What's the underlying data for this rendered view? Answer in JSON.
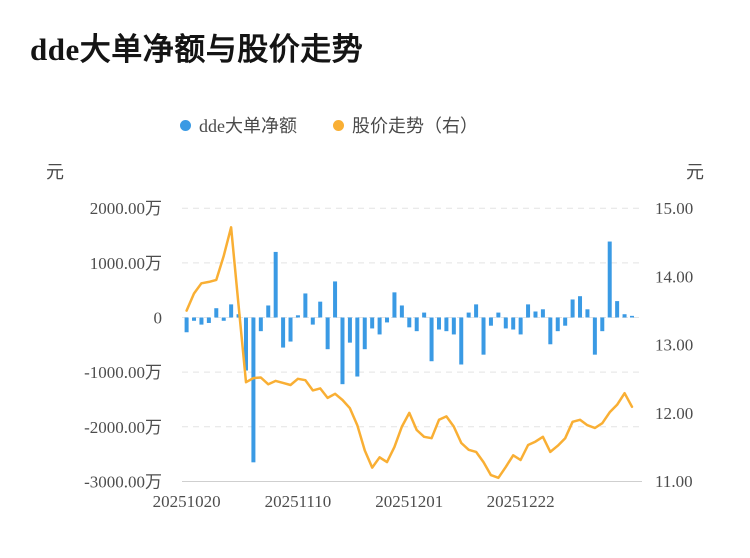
{
  "title": "dde大单净额与股价走势",
  "legend": [
    {
      "label": "dde大单净额",
      "color": "#3A9AE4"
    },
    {
      "label": "股价走势（右）",
      "color": "#F9AF34"
    }
  ],
  "axes": {
    "left_unit": "元",
    "right_unit": "元",
    "left_ticks": [
      "2000.00万",
      "1000.00万",
      "0",
      "-1000.00万",
      "-2000.00万",
      "-3000.00万"
    ],
    "right_ticks": [
      "15.00",
      "14.00",
      "13.00",
      "12.00",
      "11.00"
    ],
    "x_ticks": [
      "20251020",
      "20251110",
      "20251201",
      "20251222"
    ]
  },
  "colors": {
    "bar": "#3A9AE4",
    "line": "#F9AF34",
    "grid": "#e4e4e4",
    "axis_line": "#cfcfcf",
    "tick_text": "#4d4d4d",
    "title_text": "#141414",
    "background": "#ffffff"
  },
  "chart_data": {
    "type": "combo",
    "title": "dde大单净额与股价走势",
    "x": [
      "20251020",
      "20251021",
      "20251022",
      "20251023",
      "20251024",
      "20251027",
      "20251028",
      "20251029",
      "20251030",
      "20251031",
      "20251103",
      "20251104",
      "20251105",
      "20251106",
      "20251107",
      "20251110",
      "20251111",
      "20251112",
      "20251113",
      "20251114",
      "20251117",
      "20251118",
      "20251119",
      "20251120",
      "20251121",
      "20251124",
      "20251125",
      "20251126",
      "20251127",
      "20251128",
      "20251201",
      "20251202",
      "20251203",
      "20251204",
      "20251205",
      "20251208",
      "20251209",
      "20251210",
      "20251211",
      "20251212",
      "20251215",
      "20251216",
      "20251217",
      "20251218",
      "20251219",
      "20251222",
      "20251223",
      "20251224",
      "20251225",
      "20251226",
      "20251229",
      "20251230",
      "20251231",
      "20260102",
      "20260105",
      "20260106",
      "20260107",
      "20260108",
      "20260109",
      "20260112",
      "20260113"
    ],
    "x_tick_indices": [
      0,
      15,
      30,
      45
    ],
    "series": [
      {
        "name": "dde大单净额",
        "type": "bar",
        "axis": "left",
        "unit": "万元",
        "values": [
          -270,
          -60,
          -130,
          -100,
          170,
          -60,
          240,
          60,
          -970,
          -2650,
          -250,
          220,
          1200,
          -550,
          -440,
          40,
          440,
          -130,
          290,
          -580,
          660,
          -1220,
          -460,
          -1080,
          -580,
          -200,
          -310,
          -90,
          460,
          220,
          -180,
          -250,
          90,
          -800,
          -220,
          -250,
          -310,
          -860,
          90,
          240,
          -680,
          -150,
          90,
          -200,
          -220,
          -310,
          240,
          110,
          150,
          -490,
          -250,
          -150,
          330,
          390,
          150,
          -680,
          -250,
          1390,
          300,
          60,
          30
        ]
      },
      {
        "name": "股价走势（右）",
        "type": "line",
        "axis": "right",
        "unit": "元",
        "values": [
          13.5,
          13.75,
          13.9,
          13.92,
          13.95,
          14.3,
          14.72,
          13.57,
          12.45,
          12.51,
          12.52,
          12.42,
          12.47,
          12.44,
          12.41,
          12.5,
          12.48,
          12.33,
          12.36,
          12.22,
          12.28,
          12.19,
          12.07,
          11.82,
          11.45,
          11.2,
          11.35,
          11.28,
          11.5,
          11.8,
          12.0,
          11.75,
          11.65,
          11.63,
          11.9,
          11.95,
          11.8,
          11.56,
          11.46,
          11.43,
          11.28,
          11.09,
          11.05,
          11.21,
          11.38,
          11.31,
          11.53,
          11.58,
          11.65,
          11.43,
          11.52,
          11.63,
          11.87,
          11.9,
          11.82,
          11.78,
          11.85,
          12.01,
          12.12,
          12.29,
          12.09
        ]
      }
    ],
    "left_axis": {
      "label": "元",
      "unit": "万元",
      "range": [
        -3000,
        2000
      ]
    },
    "right_axis": {
      "label": "元",
      "unit": "元",
      "range": [
        11.0,
        15.0
      ]
    },
    "grid": "dashed-horizontal",
    "legend_position": "top-center"
  }
}
